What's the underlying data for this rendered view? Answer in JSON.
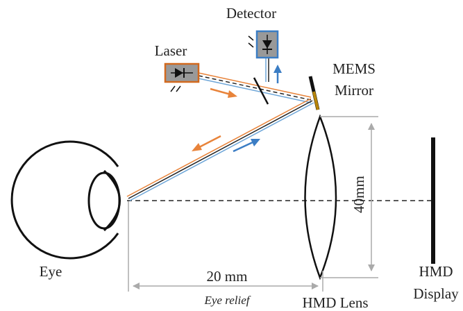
{
  "labels": {
    "detector": "Detector",
    "laser": "Laser",
    "mems_mirror": [
      "MEMS",
      "Mirror"
    ],
    "eye": "Eye",
    "eye_relief_distance": "20 mm",
    "eye_relief": "Eye relief",
    "lens_height": "40mm",
    "hmd_lens": "HMD Lens",
    "hmd_display": [
      "HMD",
      "Display"
    ]
  }
}
